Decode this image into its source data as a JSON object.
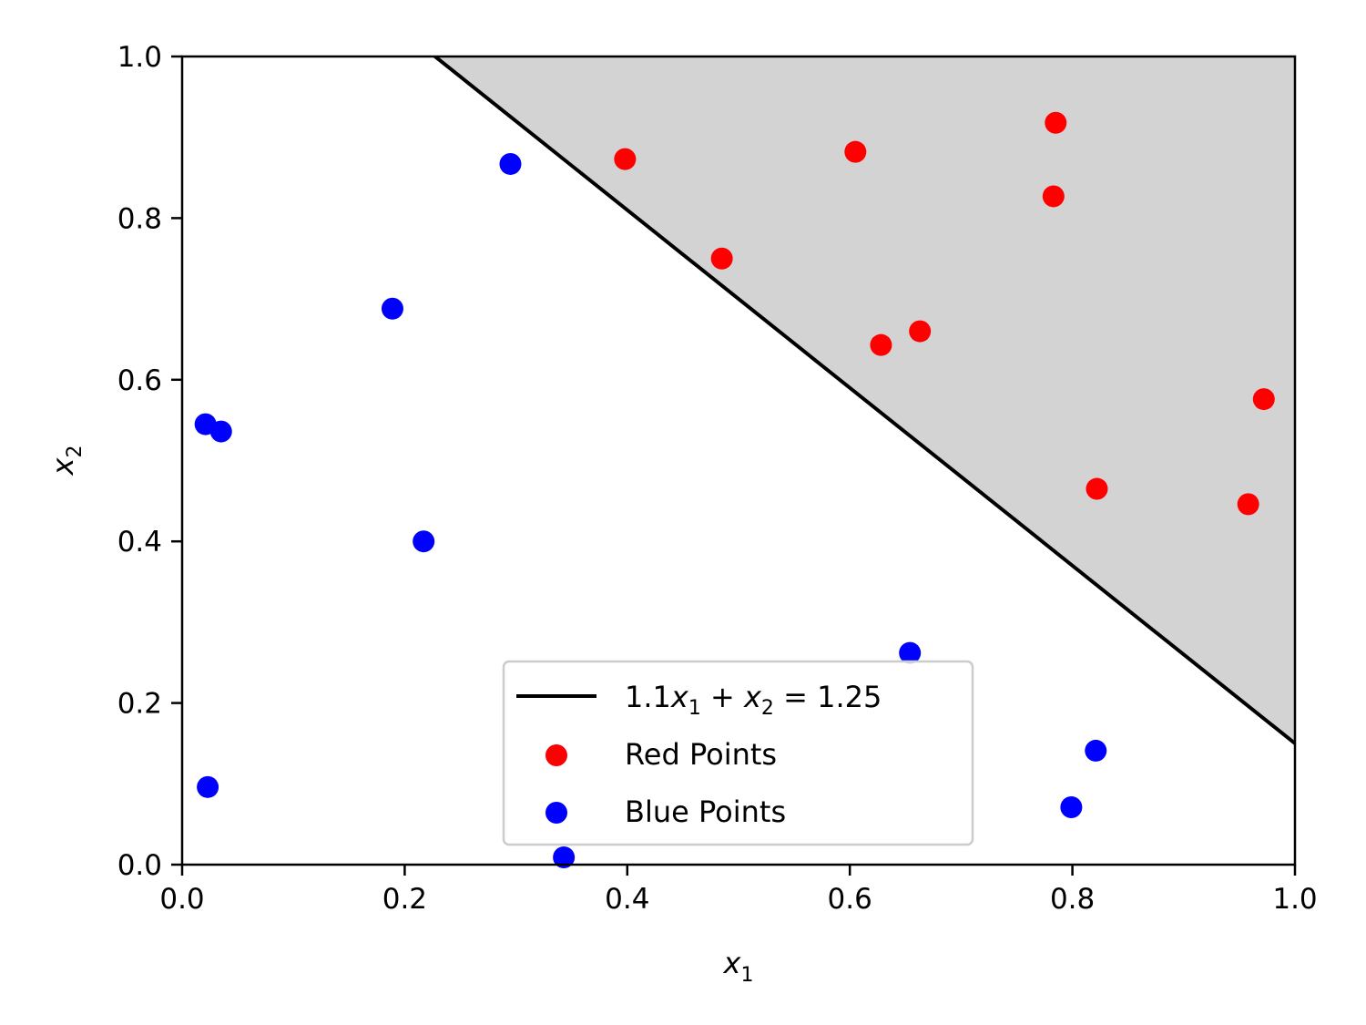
{
  "chart_data": {
    "type": "scatter",
    "title": "",
    "xlabel": {
      "var": "x",
      "sub": "1"
    },
    "ylabel": {
      "var": "x",
      "sub": "2"
    },
    "xlim": [
      0.0,
      1.0
    ],
    "ylim": [
      0.0,
      1.0
    ],
    "x_ticks": [
      "0.0",
      "0.2",
      "0.4",
      "0.6",
      "0.8",
      "1.0"
    ],
    "y_ticks": [
      "0.0",
      "0.2",
      "0.4",
      "0.6",
      "0.8",
      "1.0"
    ],
    "grid": false,
    "legend_position": "bottom-center",
    "line": {
      "equation": {
        "a": 1.1,
        "b": 1,
        "c": 1.25
      },
      "color": "#000000",
      "legend": {
        "coef": "1.1",
        "var1": "x",
        "sub1": "1",
        "plus": " + ",
        "var2": "x",
        "sub2": "2",
        "rhs": " = 1.25"
      }
    },
    "shaded_region": {
      "side": "above-line",
      "color": "#d3d3d3"
    },
    "series": [
      {
        "name": "Red Points",
        "color": "#ff0000",
        "points": [
          [
            0.398,
            0.873
          ],
          [
            0.605,
            0.882
          ],
          [
            0.785,
            0.918
          ],
          [
            0.783,
            0.827
          ],
          [
            0.485,
            0.75
          ],
          [
            0.628,
            0.643
          ],
          [
            0.663,
            0.66
          ],
          [
            0.972,
            0.576
          ],
          [
            0.822,
            0.465
          ],
          [
            0.958,
            0.446
          ]
        ]
      },
      {
        "name": "Blue Points",
        "color": "#0000ff",
        "points": [
          [
            0.295,
            0.867
          ],
          [
            0.189,
            0.688
          ],
          [
            0.021,
            0.545
          ],
          [
            0.035,
            0.536
          ],
          [
            0.217,
            0.4
          ],
          [
            0.654,
            0.262
          ],
          [
            0.821,
            0.141
          ],
          [
            0.023,
            0.096
          ],
          [
            0.799,
            0.071
          ],
          [
            0.343,
            0.009
          ]
        ]
      }
    ]
  }
}
